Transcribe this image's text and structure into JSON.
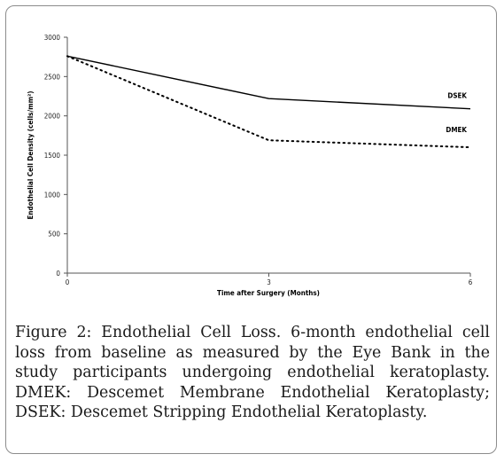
{
  "chart_data": {
    "type": "line",
    "xlabel": "Time after Surgery (Months)",
    "ylabel": "Endothelial Cell Density (cells/mm²)",
    "x": [
      0,
      3,
      6
    ],
    "x_ticks": [
      "0",
      "3",
      "6"
    ],
    "y_ticks": [
      "0",
      "500",
      "1000",
      "1500",
      "2000",
      "2500",
      "3000"
    ],
    "xlim": [
      0,
      6
    ],
    "ylim": [
      0,
      3000
    ],
    "grid": false,
    "series": [
      {
        "name": "DSEK",
        "values": [
          2760,
          2220,
          2090
        ],
        "color": "#000000",
        "style": "solid"
      },
      {
        "name": "DMEK",
        "values": [
          2760,
          1690,
          1600
        ],
        "color": "#000000",
        "style": "dotted"
      }
    ]
  },
  "caption": {
    "label": "Figure 2:",
    "text": "Endothelial Cell Loss. 6-month endothelial cell loss from baseline as measured by the Eye Bank in the study participants undergoing endothelial keratoplasty. DMEK: Descemet Membrane Endothelial Keratoplasty; DSEK: Descemet Stripping Endothelial Keratoplasty."
  }
}
